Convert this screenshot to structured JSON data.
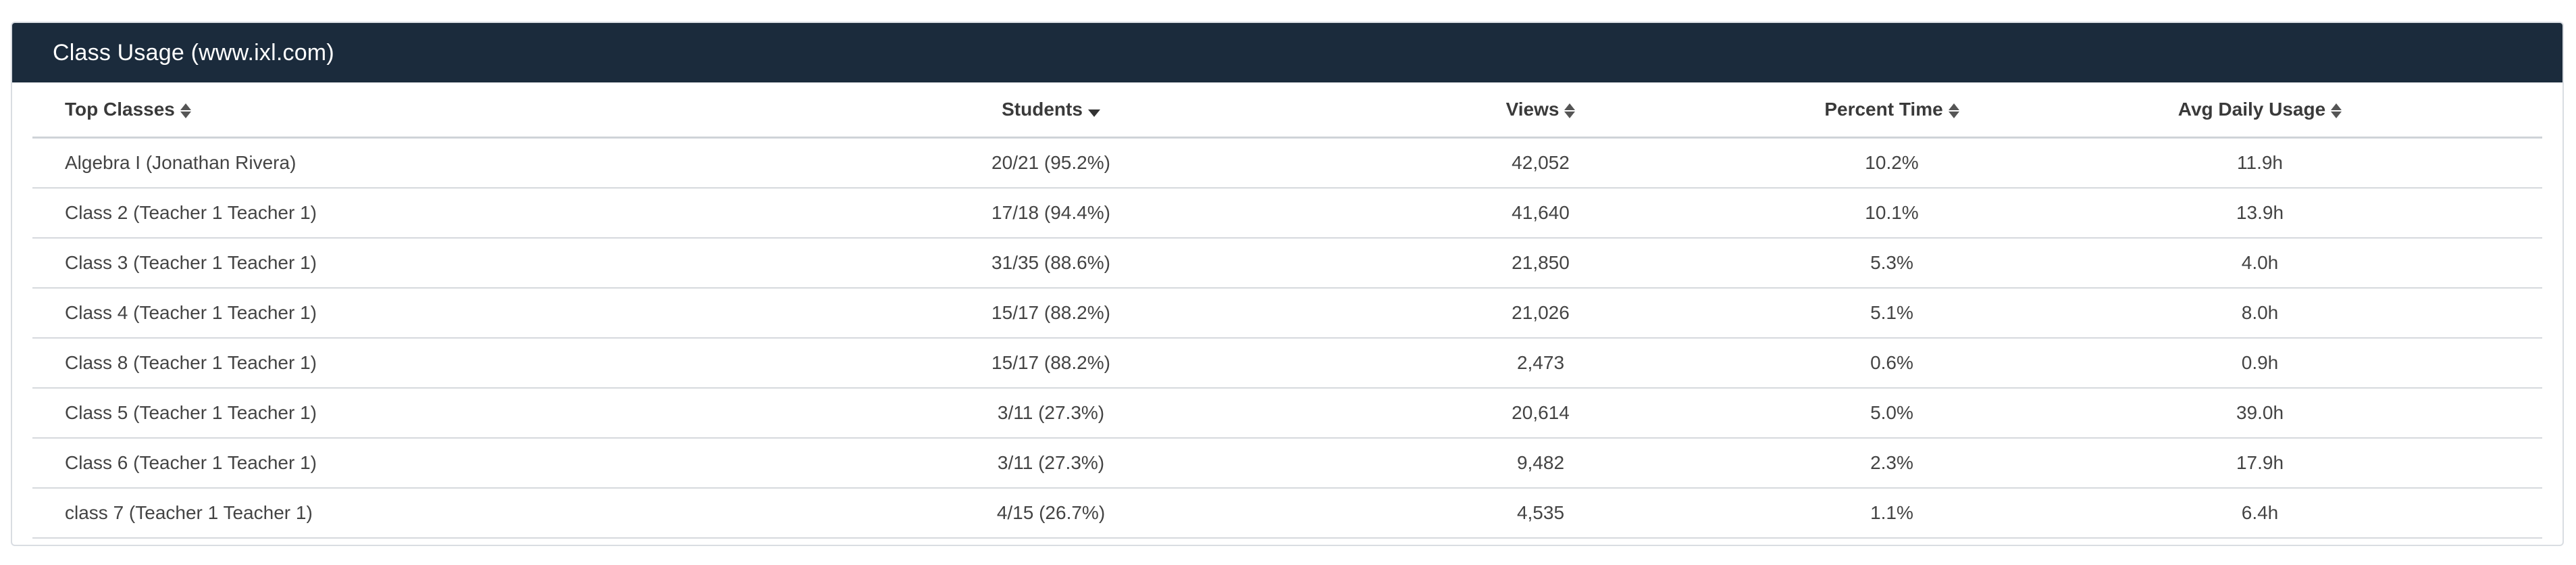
{
  "panel": {
    "title": "Class Usage (www.ixl.com)",
    "header_bg": "#1b2b3c"
  },
  "table": {
    "columns": [
      {
        "label": "Top Classes",
        "sort": "none",
        "icon": "sort-icon"
      },
      {
        "label": "Students",
        "sort": "desc",
        "icon": "sort-desc-icon"
      },
      {
        "label": "Views",
        "sort": "none",
        "icon": "sort-icon"
      },
      {
        "label": "Percent Time",
        "sort": "none",
        "icon": "sort-icon"
      },
      {
        "label": "Avg Daily Usage",
        "sort": "none",
        "icon": "sort-icon"
      }
    ],
    "rows": [
      {
        "class": "Algebra I (Jonathan Rivera)",
        "students": "20/21 (95.2%)",
        "views": "42,052",
        "percent": "10.2%",
        "avg": "11.9h"
      },
      {
        "class": "Class 2 (Teacher 1 Teacher 1)",
        "students": "17/18 (94.4%)",
        "views": "41,640",
        "percent": "10.1%",
        "avg": "13.9h"
      },
      {
        "class": "Class 3 (Teacher 1 Teacher 1)",
        "students": "31/35 (88.6%)",
        "views": "21,850",
        "percent": "5.3%",
        "avg": "4.0h"
      },
      {
        "class": "Class 4 (Teacher 1 Teacher 1)",
        "students": "15/17 (88.2%)",
        "views": "21,026",
        "percent": "5.1%",
        "avg": "8.0h"
      },
      {
        "class": "Class 8 (Teacher 1 Teacher 1)",
        "students": "15/17 (88.2%)",
        "views": "2,473",
        "percent": "0.6%",
        "avg": "0.9h"
      },
      {
        "class": "Class 5 (Teacher 1 Teacher 1)",
        "students": "3/11 (27.3%)",
        "views": "20,614",
        "percent": "5.0%",
        "avg": "39.0h"
      },
      {
        "class": "Class 6 (Teacher 1 Teacher 1)",
        "students": "3/11 (27.3%)",
        "views": "9,482",
        "percent": "2.3%",
        "avg": "17.9h"
      },
      {
        "class": "class 7 (Teacher 1 Teacher 1)",
        "students": "4/15 (26.7%)",
        "views": "4,535",
        "percent": "1.1%",
        "avg": "6.4h"
      }
    ]
  }
}
